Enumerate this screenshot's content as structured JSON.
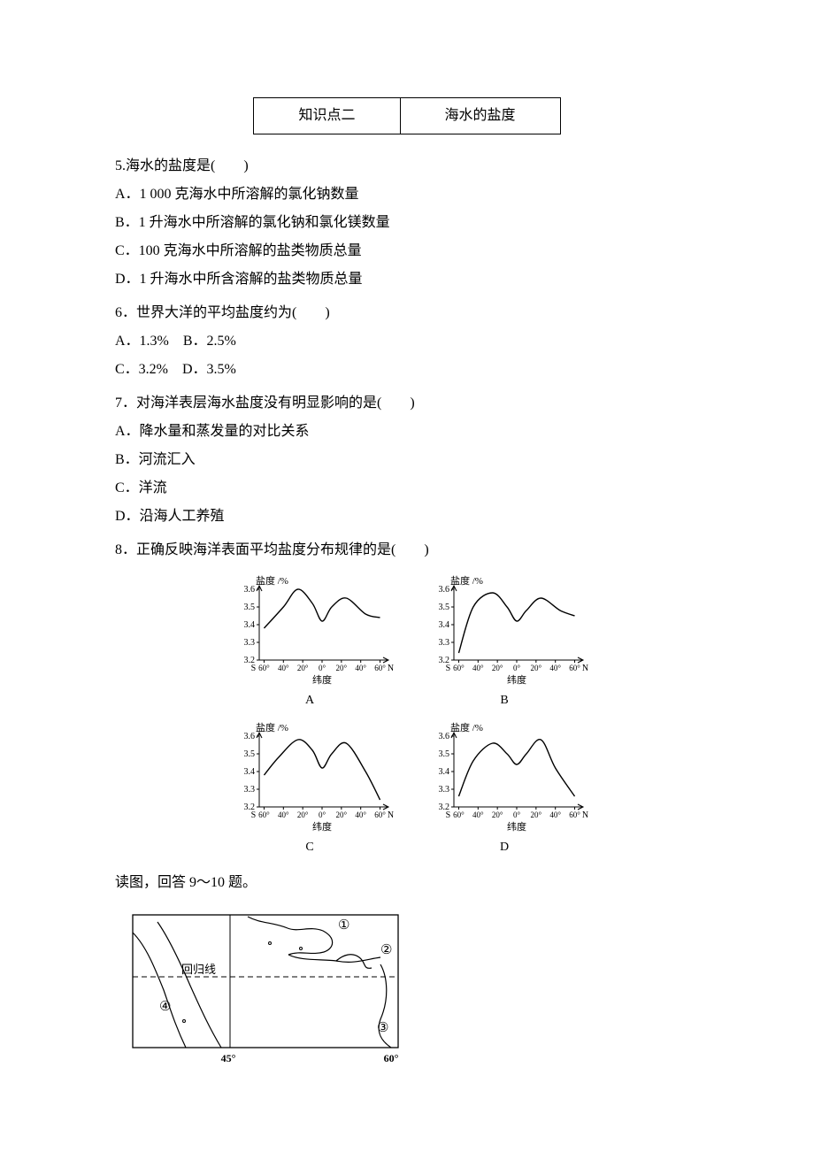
{
  "header": {
    "col1": "知识点二",
    "col2": "海水的盐度"
  },
  "q5": {
    "stem": "5.海水的盐度是(　　)",
    "A": "A．1 000 克海水中所溶解的氯化钠数量",
    "B": "B．1 升海水中所溶解的氯化钠和氯化镁数量",
    "C": "C．100 克海水中所溶解的盐类物质总量",
    "D": "D．1 升海水中所含溶解的盐类物质总量"
  },
  "q6": {
    "stem": "6．世界大洋的平均盐度约为(　　)",
    "line1": "A．1.3%　B．2.5%",
    "line2": "C．3.2%　D．3.5%"
  },
  "q7": {
    "stem": "7．对海洋表层海水盐度没有明显影响的是(　　)",
    "A": "A．降水量和蒸发量的对比关系",
    "B": "B．河流汇入",
    "C": "C．洋流",
    "D": "D．沿海人工养殖"
  },
  "q8": {
    "stem": "8．正确反映海洋表面平均盐度分布规律的是(　　)"
  },
  "q9_intro": "读图，回答 9～10 题。",
  "chart": {
    "ylabel": "盐度 /%",
    "xlabel": "纬度",
    "ylim": [
      3.2,
      3.6
    ],
    "yticks": [
      3.2,
      3.3,
      3.4,
      3.5,
      3.6
    ],
    "xlabels_left": "S",
    "xlabels_right": "N",
    "xticks": [
      "60°",
      "40°",
      "20°",
      "0°",
      "20°",
      "40°",
      "60°"
    ],
    "series": {
      "A": {
        "x": [
          -60,
          -40,
          -25,
          -10,
          0,
          10,
          25,
          45,
          60
        ],
        "y": [
          3.38,
          3.5,
          3.6,
          3.52,
          3.42,
          3.5,
          3.55,
          3.46,
          3.44
        ]
      },
      "B": {
        "x": [
          -60,
          -45,
          -25,
          -10,
          0,
          10,
          25,
          45,
          60
        ],
        "y": [
          3.24,
          3.5,
          3.58,
          3.5,
          3.42,
          3.48,
          3.55,
          3.48,
          3.45
        ]
      },
      "C": {
        "x": [
          -60,
          -45,
          -25,
          -10,
          0,
          10,
          25,
          45,
          60
        ],
        "y": [
          3.38,
          3.48,
          3.58,
          3.52,
          3.42,
          3.5,
          3.56,
          3.4,
          3.24
        ]
      },
      "D": {
        "x": [
          -60,
          -45,
          -25,
          -10,
          0,
          10,
          25,
          40,
          60
        ],
        "y": [
          3.26,
          3.46,
          3.56,
          3.5,
          3.44,
          3.5,
          3.58,
          3.42,
          3.26
        ]
      }
    },
    "color": "#000000",
    "axis_color": "#000000",
    "tick_fontsize": 10,
    "label_fontsize": 12
  },
  "chart_letters": {
    "A": "A",
    "B": "B",
    "C": "C",
    "D": "D"
  },
  "map": {
    "border_color": "#000000",
    "tropic_label": "回归线",
    "lon_labels": {
      "l45": "45°",
      "l60": "60°"
    },
    "circled": {
      "c1": "①",
      "c2": "②",
      "c3": "③",
      "c4": "④"
    }
  }
}
